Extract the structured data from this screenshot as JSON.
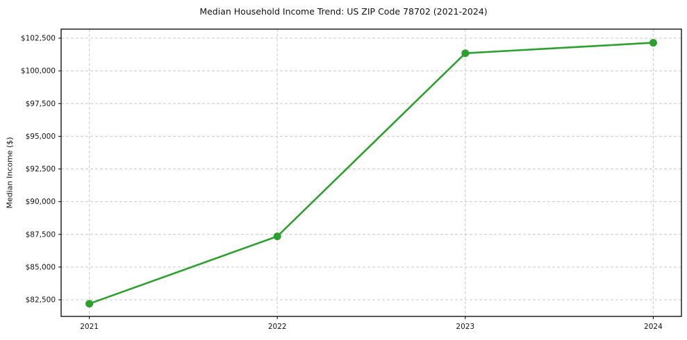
{
  "chart_data": {
    "type": "line",
    "title": "Median Household Income Trend: US ZIP Code 78702 (2021-2024)",
    "xlabel": "",
    "ylabel": "Median Income ($)",
    "x": [
      2021,
      2022,
      2023,
      2024
    ],
    "x_tick_labels": [
      "2021",
      "2022",
      "2023",
      "2024"
    ],
    "series": [
      {
        "name": "Median Household Income",
        "values": [
          82200,
          87350,
          101350,
          102150
        ],
        "color": "#2ca02c",
        "marker": "circle",
        "marker_radius": 5.5,
        "line_width": 2.6
      }
    ],
    "y_ticks": [
      82500,
      85000,
      87500,
      90000,
      92500,
      95000,
      97500,
      100000,
      102500
    ],
    "y_tick_labels": [
      "$82,500",
      "$85,000",
      "$87,500",
      "$90,000",
      "$92,500",
      "$95,000",
      "$97,500",
      "$100,000",
      "$102,500"
    ],
    "ylim": [
      81230,
      103190
    ],
    "xlim": [
      2020.85,
      2024.15
    ],
    "grid": "both, dashed",
    "legend": "none"
  },
  "colors": {
    "line": "#2ca02c",
    "grid": "#c9c9c9",
    "axis": "#000000",
    "text": "#111111",
    "background": "#ffffff"
  }
}
